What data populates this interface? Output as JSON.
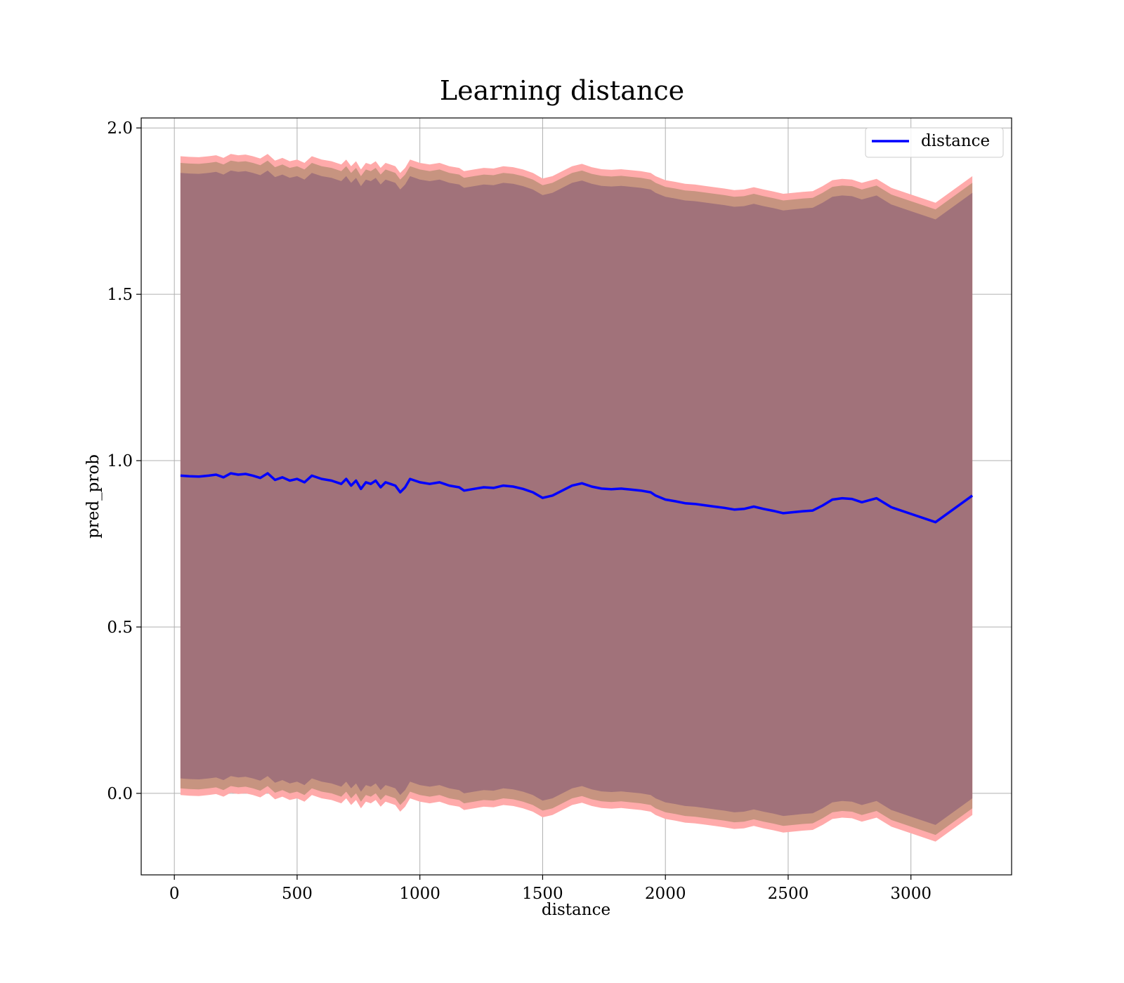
{
  "chart_data": {
    "type": "line",
    "title": "Learning distance",
    "xlabel": "distance",
    "ylabel": "pred_prob",
    "xlim": [
      -135,
      3410
    ],
    "ylim": [
      -0.245,
      2.03
    ],
    "xticks": [
      0,
      500,
      1000,
      1500,
      2000,
      2500,
      3000
    ],
    "xtick_labels": [
      "0",
      "500",
      "1000",
      "1500",
      "2000",
      "2500",
      "3000"
    ],
    "yticks": [
      0.0,
      0.5,
      1.0,
      1.5,
      2.0
    ],
    "ytick_labels": [
      "0.0",
      "0.5",
      "1.0",
      "1.5",
      "2.0"
    ],
    "grid": true,
    "legend": {
      "position": "top-right",
      "entries": [
        {
          "label": "distance",
          "color": "#0000ff"
        }
      ]
    },
    "colors": {
      "line": "#0000ff",
      "outer_band": "#ffaaaa",
      "middle_band": "#c79480",
      "inner_band": "#a1727a",
      "grid": "#b0b0b0"
    },
    "series": [
      {
        "name": "distance",
        "x": [
          25,
          60,
          100,
          140,
          170,
          200,
          230,
          260,
          290,
          320,
          350,
          380,
          410,
          440,
          470,
          500,
          530,
          560,
          600,
          640,
          680,
          700,
          720,
          740,
          760,
          780,
          800,
          820,
          840,
          860,
          880,
          900,
          920,
          940,
          960,
          1000,
          1040,
          1080,
          1120,
          1160,
          1180,
          1220,
          1260,
          1300,
          1340,
          1380,
          1420,
          1460,
          1500,
          1540,
          1580,
          1620,
          1660,
          1700,
          1740,
          1780,
          1820,
          1860,
          1900,
          1940,
          1960,
          2000,
          2040,
          2080,
          2120,
          2160,
          2200,
          2240,
          2280,
          2320,
          2360,
          2400,
          2440,
          2480,
          2520,
          2560,
          2600,
          2640,
          2680,
          2720,
          2760,
          2800,
          2860,
          2920,
          3000,
          3100,
          3250
        ],
        "y": [
          0.955,
          0.953,
          0.952,
          0.955,
          0.958,
          0.95,
          0.962,
          0.958,
          0.96,
          0.955,
          0.948,
          0.962,
          0.942,
          0.95,
          0.94,
          0.945,
          0.935,
          0.955,
          0.945,
          0.94,
          0.93,
          0.945,
          0.925,
          0.94,
          0.915,
          0.935,
          0.93,
          0.94,
          0.92,
          0.935,
          0.93,
          0.925,
          0.905,
          0.92,
          0.945,
          0.935,
          0.93,
          0.935,
          0.925,
          0.92,
          0.91,
          0.915,
          0.92,
          0.918,
          0.925,
          0.922,
          0.915,
          0.905,
          0.888,
          0.895,
          0.91,
          0.925,
          0.932,
          0.922,
          0.916,
          0.914,
          0.916,
          0.913,
          0.91,
          0.905,
          0.895,
          0.883,
          0.878,
          0.872,
          0.87,
          0.866,
          0.862,
          0.858,
          0.853,
          0.855,
          0.862,
          0.855,
          0.849,
          0.842,
          0.845,
          0.848,
          0.85,
          0.865,
          0.883,
          0.887,
          0.885,
          0.875,
          0.887,
          0.86,
          0.84,
          0.815,
          0.895
        ]
      }
    ],
    "bands": {
      "outer_offset": 0.96,
      "middle_offset": 0.94,
      "inner_offset": 0.91
    }
  }
}
